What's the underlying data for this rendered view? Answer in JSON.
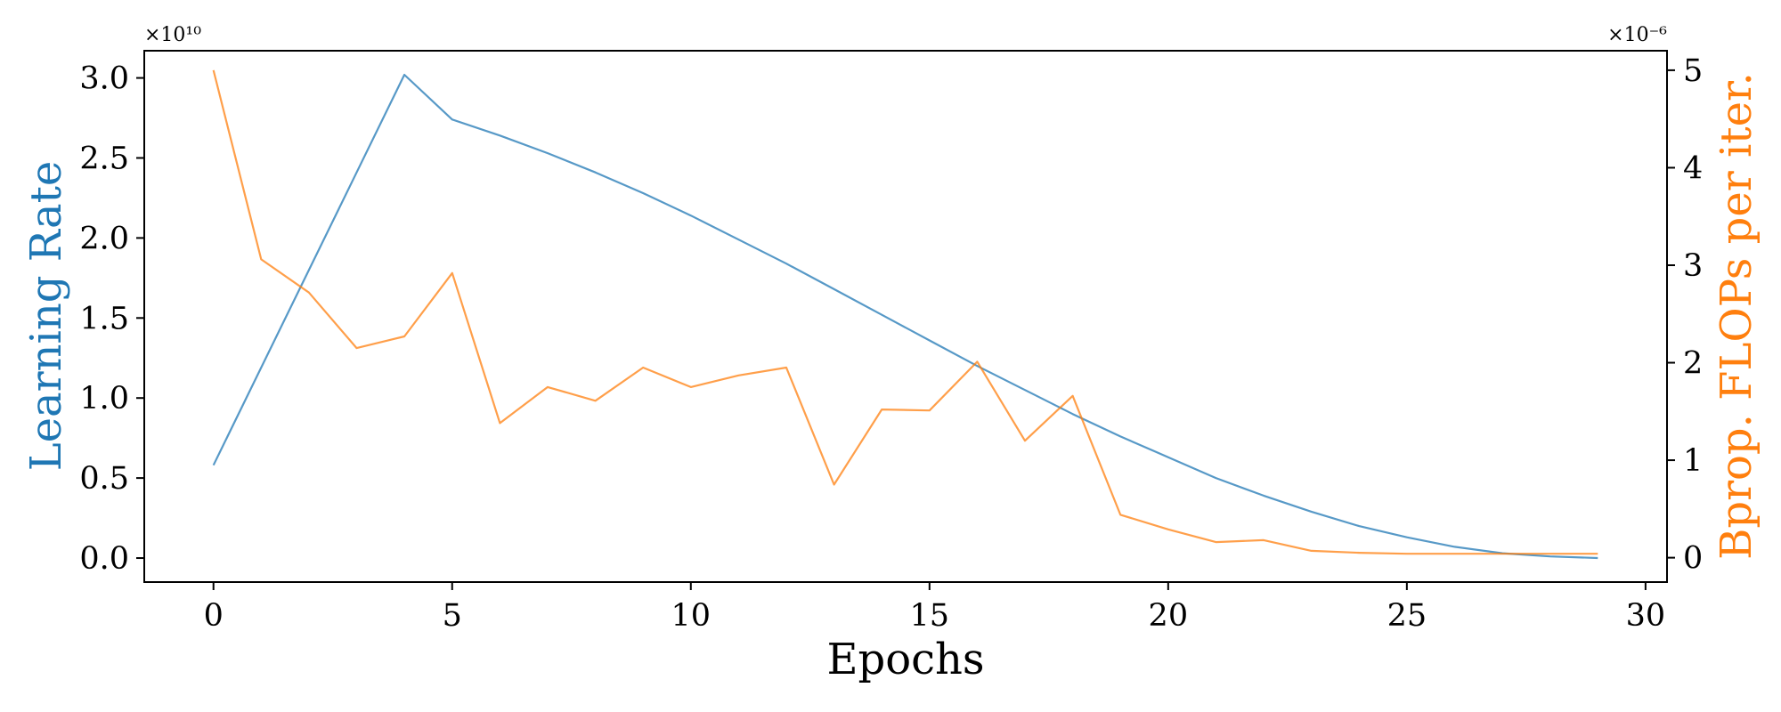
{
  "chart_data": {
    "type": "line",
    "xlabel": "Epochs",
    "ylabel_left": "Learning Rate",
    "ylabel_right": "Bprop. FLOPs per iter.",
    "left_multiplier": "×10¹⁰",
    "right_multiplier": "×10⁻⁶",
    "xlim": [
      -1.45,
      30.45
    ],
    "ylim_left": [
      -0.15,
      3.17
    ],
    "ylim_right": [
      -0.25,
      5.2
    ],
    "x_ticks": [
      0,
      5,
      10,
      15,
      20,
      25,
      30
    ],
    "x_tick_labels": [
      "0",
      "5",
      "10",
      "15",
      "20",
      "25",
      "30"
    ],
    "y_left_ticks": [
      0.0,
      0.5,
      1.0,
      1.5,
      2.0,
      2.5,
      3.0
    ],
    "y_left_tick_labels": [
      "0.0",
      "0.5",
      "1.0",
      "1.5",
      "2.0",
      "2.5",
      "3.0"
    ],
    "y_right_ticks": [
      0,
      1,
      2,
      3,
      4,
      5
    ],
    "y_right_tick_labels": [
      "0",
      "1",
      "2",
      "3",
      "4",
      "5"
    ],
    "grid": false,
    "colors": {
      "learning_rate": "#1f77b4",
      "flops": "#ff7f0e"
    },
    "series": [
      {
        "axis": "left",
        "x": [
          0,
          1,
          2,
          3,
          4,
          5,
          6,
          7,
          8,
          9,
          10,
          11,
          12,
          13,
          14,
          15,
          16,
          17,
          18,
          19,
          20,
          21,
          22,
          23,
          24,
          25,
          26,
          27,
          28,
          29
        ],
        "values": [
          0.58,
          1.19,
          1.8,
          2.41,
          3.02,
          2.74,
          2.64,
          2.53,
          2.41,
          2.28,
          2.14,
          1.99,
          1.84,
          1.68,
          1.52,
          1.36,
          1.2,
          1.05,
          0.9,
          0.76,
          0.63,
          0.5,
          0.39,
          0.29,
          0.2,
          0.13,
          0.07,
          0.03,
          0.01,
          0.0
        ]
      },
      {
        "axis": "right",
        "x": [
          0,
          1,
          2,
          3,
          4,
          5,
          6,
          7,
          8,
          9,
          10,
          11,
          12,
          13,
          14,
          15,
          16,
          17,
          18,
          19,
          20,
          21,
          22,
          23,
          24,
          25,
          26,
          27,
          28,
          29
        ],
        "values": [
          5.0,
          3.06,
          2.72,
          2.15,
          2.27,
          2.92,
          1.38,
          1.75,
          1.61,
          1.95,
          1.75,
          1.87,
          1.95,
          0.75,
          1.52,
          1.51,
          2.01,
          1.2,
          1.66,
          0.44,
          0.29,
          0.16,
          0.18,
          0.07,
          0.05,
          0.04,
          0.04,
          0.04,
          0.04,
          0.04
        ]
      }
    ]
  }
}
